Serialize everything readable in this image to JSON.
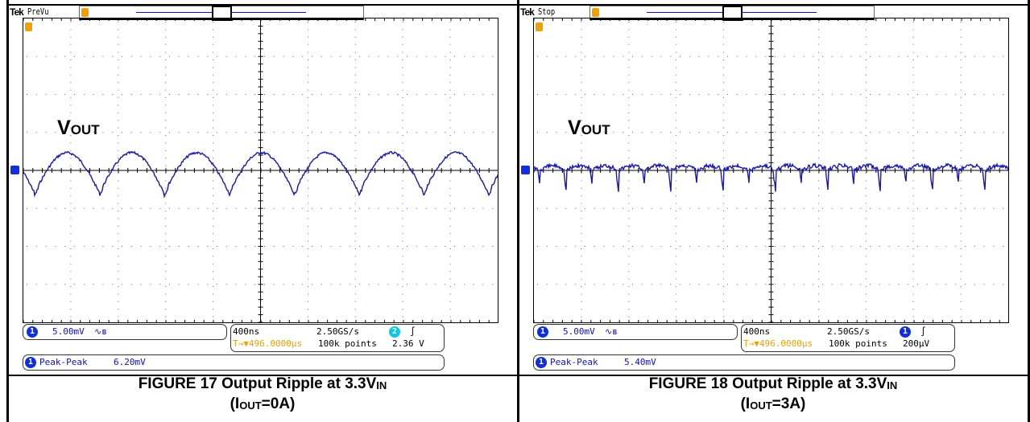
{
  "figures": [
    {
      "id": "fig17",
      "scope_brand": "Tek",
      "scope_mode": "PreVu",
      "signal_label": "V",
      "signal_label_sub": "OUT",
      "ch1_scale": "5.00mV",
      "ch1_coupling_icon": "bandwidth-limit-icon",
      "timebase": "400ns",
      "sample_rate": "2.50GS/s",
      "trigger_channel": "2",
      "trigger_position": "T→▼496.0000µs",
      "record_length": "100k points",
      "trigger_level": "2.36 V",
      "measurement_label": "Peak-Peak",
      "measurement_value": "6.20mV",
      "caption_line1": "FIGURE 17 Output Ripple at 3.3V",
      "caption_line1_sub": "IN",
      "caption_line2_pre": "(I",
      "caption_line2_sub": "OUT",
      "caption_line2_post": "=0A)",
      "waveform": "smooth",
      "trace_color": "#1818b0"
    },
    {
      "id": "fig18",
      "scope_brand": "Tek",
      "scope_mode": "Stop",
      "signal_label": "V",
      "signal_label_sub": "OUT",
      "ch1_scale": "5.00mV",
      "ch1_coupling_icon": "bandwidth-limit-icon",
      "timebase": "400ns",
      "sample_rate": "2.50GS/s",
      "trigger_channel": "1",
      "trigger_position": "T→▼496.0000µs",
      "record_length": "100k points",
      "trigger_level": "200µV",
      "measurement_label": "Peak-Peak",
      "measurement_value": "5.40mV",
      "caption_line1": "FIGURE 18 Output Ripple at 3.3V",
      "caption_line1_sub": "IN",
      "caption_line2_pre": "(I",
      "caption_line2_sub": "OUT",
      "caption_line2_post": "=3A)",
      "waveform": "spiky",
      "trace_color": "#1818b0"
    }
  ]
}
